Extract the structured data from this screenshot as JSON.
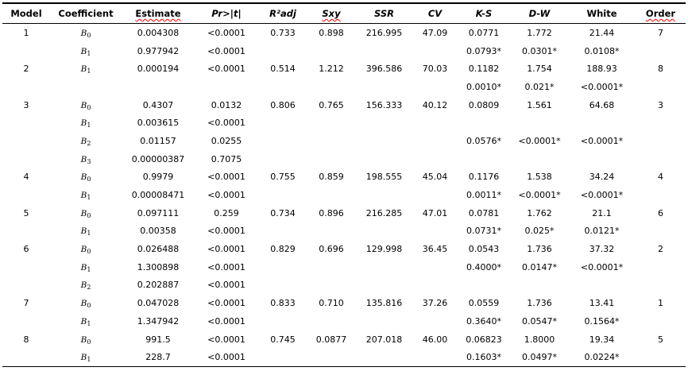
{
  "document": {
    "background": "#ffffff",
    "text_color": "#000000",
    "spellcheck_squiggle_color": "#ff0000"
  },
  "table": {
    "columns": [
      {
        "id": "model",
        "label": "Model",
        "italic": false,
        "misspelled_squiggle": false
      },
      {
        "id": "coefficient",
        "label": "Coefficient",
        "italic": false,
        "misspelled_squiggle": false
      },
      {
        "id": "estimate",
        "label": "Estimate",
        "italic": false,
        "misspelled_squiggle": true
      },
      {
        "id": "pr",
        "label": "Pr>|t|",
        "italic": true,
        "misspelled_squiggle": false
      },
      {
        "id": "r2adj",
        "label": "R²adj",
        "italic": true,
        "misspelled_squiggle": false
      },
      {
        "id": "sxy",
        "label": "Sxy",
        "italic": true,
        "misspelled_squiggle": true
      },
      {
        "id": "ssr",
        "label": "SSR",
        "italic": true,
        "misspelled_squiggle": false
      },
      {
        "id": "cv",
        "label": "CV",
        "italic": true,
        "misspelled_squiggle": false
      },
      {
        "id": "ks",
        "label": "K-S",
        "italic": true,
        "misspelled_squiggle": false
      },
      {
        "id": "dw",
        "label": "D-W",
        "italic": true,
        "misspelled_squiggle": false
      },
      {
        "id": "white",
        "label": "White",
        "italic": false,
        "misspelled_squiggle": false
      },
      {
        "id": "order",
        "label": "Order",
        "italic": false,
        "misspelled_squiggle": true
      }
    ],
    "rows": [
      {
        "model": "1",
        "coef_base": "B",
        "coef_sub": "0",
        "estimate": "0.004308",
        "pr": "<0.0001",
        "r2adj": "0.733",
        "sxy": "0.898",
        "ssr": "216.995",
        "cv": "47.09",
        "ks": "0.0771",
        "dw": "1.772",
        "white": "21.44",
        "order": "7"
      },
      {
        "model": "",
        "coef_base": "B",
        "coef_sub": "1",
        "estimate": "0.977942",
        "pr": "<0.0001",
        "r2adj": "",
        "sxy": "",
        "ssr": "",
        "cv": "",
        "ks": "0.0793*",
        "dw": "0.0301*",
        "white": "0.0108*",
        "order": ""
      },
      {
        "model": "2",
        "coef_base": "B",
        "coef_sub": "1",
        "estimate": "0.000194",
        "pr": "<0.0001",
        "r2adj": "0.514",
        "sxy": "1.212",
        "ssr": "396.586",
        "cv": "70.03",
        "ks": "0.1182",
        "dw": "1.754",
        "white": "188.93",
        "order": "8"
      },
      {
        "model": "",
        "coef_base": "",
        "coef_sub": "",
        "estimate": "",
        "pr": "",
        "r2adj": "",
        "sxy": "",
        "ssr": "",
        "cv": "",
        "ks": "0.0010*",
        "dw": "0.021*",
        "white": "<0.0001*",
        "order": ""
      },
      {
        "model": "3",
        "coef_base": "B",
        "coef_sub": "0",
        "estimate": "0.4307",
        "pr": "0.0132",
        "r2adj": "0.806",
        "sxy": "0.765",
        "ssr": "156.333",
        "cv": "40.12",
        "ks": "0.0809",
        "dw": "1.561",
        "white": "64.68",
        "order": "3"
      },
      {
        "model": "",
        "coef_base": "B",
        "coef_sub": "1",
        "estimate": "0.003615",
        "pr": "<0.0001",
        "r2adj": "",
        "sxy": "",
        "ssr": "",
        "cv": "",
        "ks": "",
        "dw": "",
        "white": "",
        "order": ""
      },
      {
        "model": "",
        "coef_base": "B",
        "coef_sub": "2",
        "estimate": "0.01157",
        "pr": "0.0255",
        "r2adj": "",
        "sxy": "",
        "ssr": "",
        "cv": "",
        "ks": "0.0576*",
        "dw": "<0.0001*",
        "white": "<0.0001*",
        "order": ""
      },
      {
        "model": "",
        "coef_base": "B",
        "coef_sub": "3",
        "estimate": "0.00000387",
        "pr": "0.7075",
        "r2adj": "",
        "sxy": "",
        "ssr": "",
        "cv": "",
        "ks": "",
        "dw": "",
        "white": "",
        "order": ""
      },
      {
        "model": "4",
        "coef_base": "B",
        "coef_sub": "0",
        "estimate": "0.9979",
        "pr": "<0.0001",
        "r2adj": "0.755",
        "sxy": "0.859",
        "ssr": "198.555",
        "cv": "45.04",
        "ks": "0.1176",
        "dw": "1.538",
        "white": "34.24",
        "order": "4"
      },
      {
        "model": "",
        "coef_base": "B",
        "coef_sub": "1",
        "estimate": "0.00008471",
        "pr": "<0.0001",
        "r2adj": "",
        "sxy": "",
        "ssr": "",
        "cv": "",
        "ks": "0.0011*",
        "dw": "<0.0001*",
        "white": "<0.0001*",
        "order": ""
      },
      {
        "model": "5",
        "coef_base": "B",
        "coef_sub": "0",
        "estimate": "0.097111",
        "pr": "0.259",
        "r2adj": "0.734",
        "sxy": "0.896",
        "ssr": "216.285",
        "cv": "47.01",
        "ks": "0.0781",
        "dw": "1.762",
        "white": "21.1",
        "order": "6"
      },
      {
        "model": "",
        "coef_base": "B",
        "coef_sub": "1",
        "estimate": "0.00358",
        "pr": "<0.0001",
        "r2adj": "",
        "sxy": "",
        "ssr": "",
        "cv": "",
        "ks": "0.0731*",
        "dw": "0.025*",
        "white": "0.0121*",
        "order": ""
      },
      {
        "model": "6",
        "coef_base": "B",
        "coef_sub": "0",
        "estimate": "0.026488",
        "pr": "<0.0001",
        "r2adj": "0.829",
        "sxy": "0.696",
        "ssr": "129.998",
        "cv": "36.45",
        "ks": "0.0543",
        "dw": "1.736",
        "white": "37.32",
        "order": "2"
      },
      {
        "model": "",
        "coef_base": "B",
        "coef_sub": "1",
        "estimate": "1.300898",
        "pr": "<0.0001",
        "r2adj": "",
        "sxy": "",
        "ssr": "",
        "cv": "",
        "ks": "0.4000*",
        "dw": "0.0147*",
        "white": "<0.0001*",
        "order": ""
      },
      {
        "model": "",
        "coef_base": "B",
        "coef_sub": "2",
        "estimate": "0.202887",
        "pr": "<0.0001",
        "r2adj": "",
        "sxy": "",
        "ssr": "",
        "cv": "",
        "ks": "",
        "dw": "",
        "white": "",
        "order": ""
      },
      {
        "model": "7",
        "coef_base": "B",
        "coef_sub": "0",
        "estimate": "0.047028",
        "pr": "<0.0001",
        "r2adj": "0.833",
        "sxy": "0.710",
        "ssr": "135.816",
        "cv": "37.26",
        "ks": "0.0559",
        "dw": "1.736",
        "white": "13.41",
        "order": "1"
      },
      {
        "model": "",
        "coef_base": "B",
        "coef_sub": "1",
        "estimate": "1.347942",
        "pr": "<0.0001",
        "r2adj": "",
        "sxy": "",
        "ssr": "",
        "cv": "",
        "ks": "0.3640*",
        "dw": "0.0547*",
        "white": "0.1564*",
        "order": ""
      },
      {
        "model": "8",
        "coef_base": "B",
        "coef_sub": "0",
        "estimate": "991.5",
        "pr": "<0.0001",
        "r2adj": "0.745",
        "sxy": "0.0877",
        "ssr": "207.018",
        "cv": "46.00",
        "ks": "0.06823",
        "dw": "1.8000",
        "white": "19.34",
        "order": "5"
      },
      {
        "model": "",
        "coef_base": "B",
        "coef_sub": "1",
        "estimate": "228.7",
        "pr": "<0.0001",
        "r2adj": "",
        "sxy": "",
        "ssr": "",
        "cv": "",
        "ks": "0.1603*",
        "dw": "0.0497*",
        "white": "0.0224*",
        "order": ""
      }
    ]
  }
}
